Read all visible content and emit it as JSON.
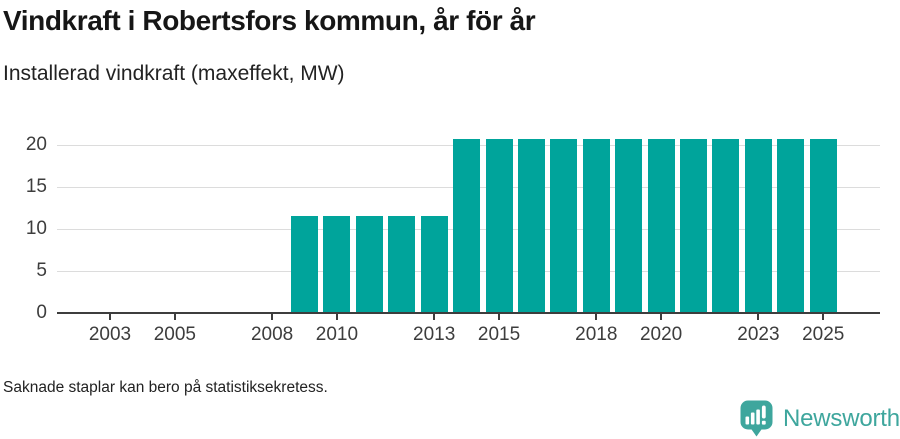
{
  "page": {
    "title": "Vindkraft i Robertsfors kommun, år för år",
    "subtitle": "Installerad vindkraft (maxeffekt, MW)",
    "footnote": "Saknade staplar kan bero på statistiksekretess."
  },
  "brand": {
    "name": "Newsworthy",
    "icon": "newsworthy-speech-bubble-bar-chart-icon",
    "color": "#3ea69d"
  },
  "colors": {
    "bar": "#00a49b",
    "grid": "#dcdcdc",
    "axis": "#3d3d3d",
    "title_text": "#161616",
    "body_text": "#222222"
  },
  "chart_data": {
    "type": "bar",
    "title": "Vindkraft i Robertsfors kommun, år för år",
    "ylabel": "Installerad vindkraft (maxeffekt, MW)",
    "xlabel": "",
    "x": [
      2002,
      2003,
      2004,
      2005,
      2006,
      2007,
      2008,
      2009,
      2010,
      2011,
      2012,
      2013,
      2014,
      2015,
      2016,
      2017,
      2018,
      2019,
      2020,
      2021,
      2022,
      2023,
      2024,
      2025
    ],
    "values": [
      null,
      null,
      null,
      null,
      null,
      null,
      null,
      11.5,
      11.5,
      11.5,
      11.5,
      11.5,
      20.7,
      20.7,
      20.7,
      20.7,
      20.7,
      20.7,
      20.7,
      20.7,
      20.7,
      20.7,
      20.7,
      20.7
    ],
    "series_name": "Installerad vindkraft (maxeffekt, MW)",
    "missing_values_note": "Saknade staplar kan bero på statistiksekretess.",
    "xticks": [
      2003,
      2005,
      2008,
      2010,
      2013,
      2015,
      2018,
      2020,
      2023,
      2025
    ],
    "yticks": [
      0,
      5,
      10,
      15,
      20
    ],
    "ylim": [
      0,
      21.7
    ],
    "grid": "horizontal-only",
    "legend": false,
    "bar_color": "#00a49b"
  }
}
